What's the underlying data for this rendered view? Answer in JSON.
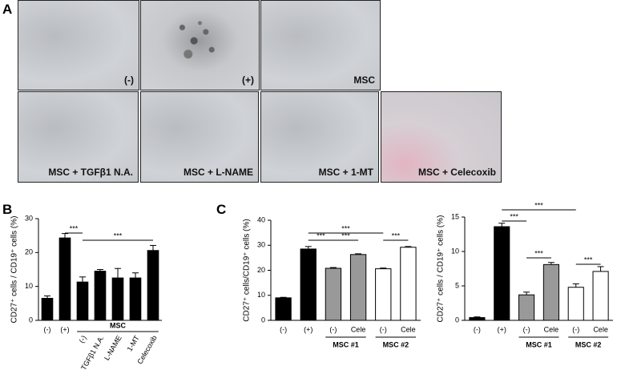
{
  "panel_labels": [
    "A",
    "B",
    "C"
  ],
  "images": [
    {
      "label": "(-)"
    },
    {
      "label": "(+)"
    },
    {
      "label": "MSC"
    },
    {
      "label": "MSC + TGFβ1 N.A."
    },
    {
      "label": "MSC + L-NAME"
    },
    {
      "label": "MSC + 1-MT"
    },
    {
      "label": "MSC + Celecoxib"
    }
  ],
  "chart_data": [
    {
      "type": "bar",
      "ylabel": "CD27⁺ cells / CD19⁺ cells (%)",
      "categories": [
        "(-)",
        "(+)",
        "(-)",
        "TGFβ1 N.A.",
        "L-NAME",
        "1-MT",
        "Celecoxib"
      ],
      "values": [
        6.5,
        24.3,
        11.3,
        14.5,
        12.5,
        12.5,
        20.6
      ],
      "errors": [
        0.7,
        1.3,
        1.5,
        0.5,
        2.8,
        1.5,
        1.5
      ],
      "colors": [
        "#000000",
        "#000000",
        "#000000",
        "#000000",
        "#000000",
        "#000000",
        "#000000"
      ],
      "groups": [
        "MSC"
      ],
      "annotations": [
        "***",
        "***"
      ],
      "ylim": [
        0,
        30
      ],
      "yticks": [
        0,
        10,
        20,
        30
      ]
    },
    {
      "type": "bar",
      "ylabel": "CD27⁺ cells/CD19⁺ cells (%)",
      "categories": [
        "(-)",
        "(+)",
        "(-)",
        "Cele",
        "(-)",
        "Cele"
      ],
      "values": [
        9,
        28.5,
        20.8,
        26.3,
        20.6,
        29.2
      ],
      "errors": [
        0.2,
        1,
        0.3,
        0.3,
        0.3,
        0.3
      ],
      "colors": [
        "#000000",
        "#000000",
        "#999999",
        "#999999",
        "#ffffff",
        "#ffffff"
      ],
      "groups": [
        "MSC #1",
        "MSC #2"
      ],
      "annotations": [
        "***",
        "***",
        "***",
        "***"
      ],
      "ylim": [
        0,
        40
      ],
      "yticks": [
        0,
        10,
        20,
        30,
        40
      ]
    },
    {
      "type": "bar",
      "ylabel": "CD27⁺ cells / CD19⁺ cells (%)",
      "categories": [
        "(-)",
        "(+)",
        "(-)",
        "Cele",
        "(-)",
        "Cele"
      ],
      "values": [
        0.4,
        13.6,
        3.7,
        8.1,
        4.8,
        7.1
      ],
      "errors": [
        0.1,
        0.5,
        0.4,
        0.3,
        0.5,
        0.7
      ],
      "colors": [
        "#000000",
        "#000000",
        "#999999",
        "#999999",
        "#ffffff",
        "#ffffff"
      ],
      "groups": [
        "MSC #1",
        "MSC #2"
      ],
      "annotations": [
        "***",
        "***",
        "***",
        "***"
      ],
      "ylim": [
        0,
        15
      ],
      "yticks": [
        0,
        5,
        10,
        15
      ]
    }
  ]
}
